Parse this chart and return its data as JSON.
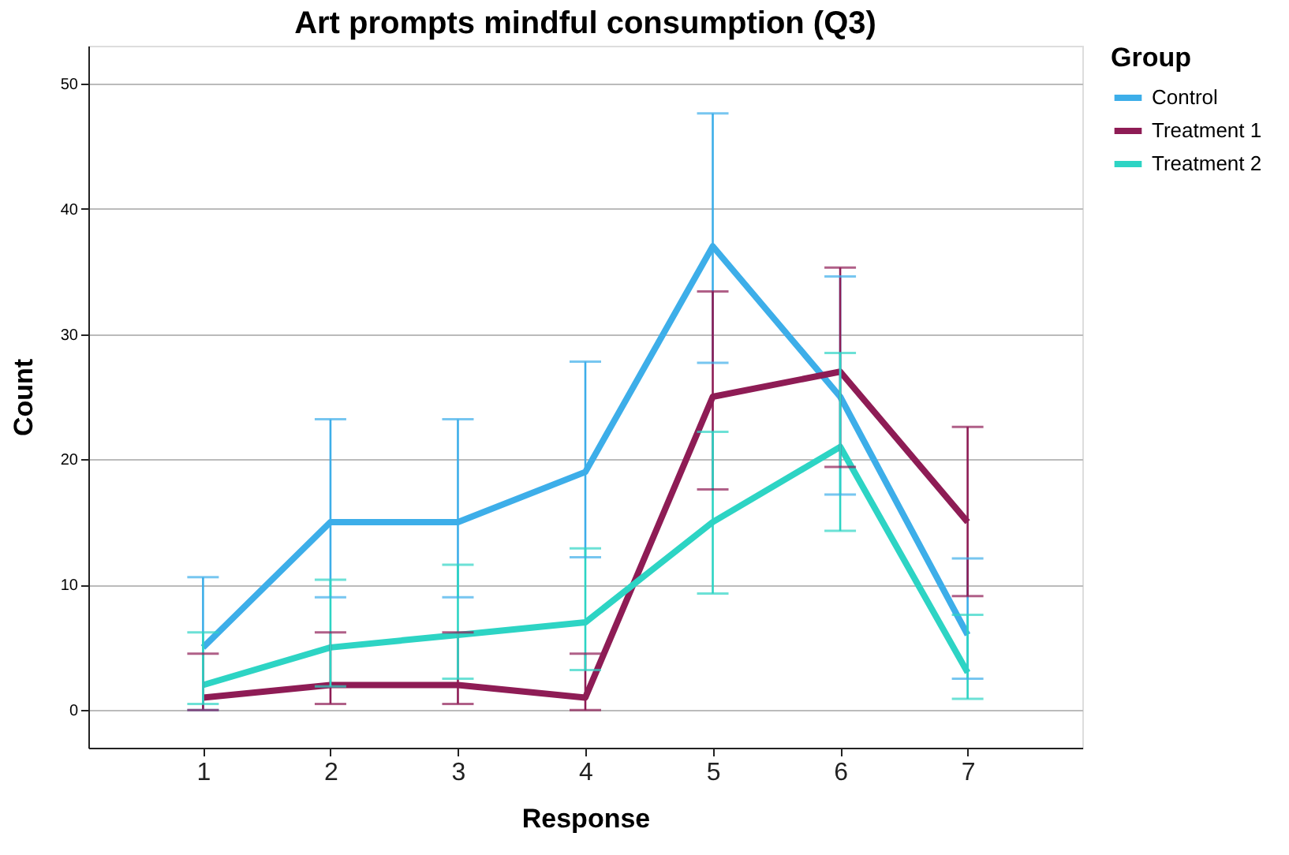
{
  "chart_data": {
    "type": "line",
    "title": "Art prompts mindful consumption (Q3)",
    "xlabel": "Response",
    "ylabel": "Count",
    "legend_title": "Group",
    "categories": [
      "1",
      "2",
      "3",
      "4",
      "5",
      "6",
      "7"
    ],
    "series": [
      {
        "name": "Control",
        "color": "#3daee9",
        "values": [
          5,
          15,
          15,
          19,
          37,
          25,
          6
        ],
        "errors": [
          [
            0,
            10.6
          ],
          [
            9.0,
            23.2
          ],
          [
            9.0,
            23.2
          ],
          [
            12.2,
            27.8
          ],
          [
            27.7,
            47.6
          ],
          [
            17.2,
            34.6
          ],
          [
            2.5,
            12.1
          ]
        ]
      },
      {
        "name": "Treatment 1",
        "color": "#8e1c55",
        "values": [
          1,
          2,
          2,
          1,
          25,
          27,
          15
        ],
        "errors": [
          [
            0,
            4.5
          ],
          [
            0.5,
            6.2
          ],
          [
            0.5,
            6.2
          ],
          [
            0,
            4.5
          ],
          [
            17.6,
            33.4
          ],
          [
            19.4,
            35.3
          ],
          [
            9.1,
            22.6
          ]
        ]
      },
      {
        "name": "Treatment 2",
        "color": "#2dd4c4",
        "values": [
          2,
          5,
          6,
          7,
          15,
          21,
          3
        ],
        "errors": [
          [
            0.5,
            6.2
          ],
          [
            1.9,
            10.4
          ],
          [
            2.5,
            11.6
          ],
          [
            3.2,
            12.9
          ],
          [
            9.3,
            22.2
          ],
          [
            14.3,
            28.5
          ],
          [
            0.9,
            7.6
          ]
        ]
      }
    ],
    "ylim": [
      -3,
      53
    ],
    "yticks": [
      0,
      10,
      20,
      30,
      40,
      50
    ],
    "grid": "y",
    "legend": "top right",
    "marker": "none",
    "line_style": "solid"
  }
}
